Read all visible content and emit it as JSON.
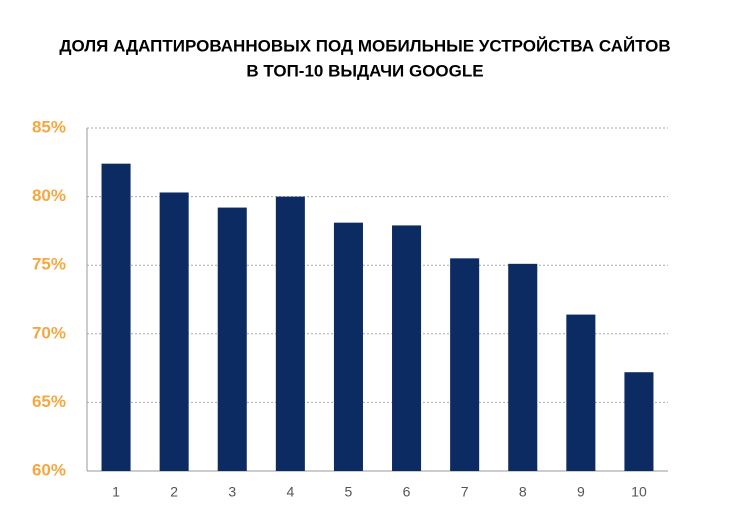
{
  "chart_data": {
    "type": "bar",
    "title": [
      "ДОЛЯ АДАПТИРОВАННОВЫХ ПОД МОБИЛЬНЫЕ УСТРОЙСТВА САЙТОВ",
      "В ТОП-10 ВЫДАЧИ GOOGLE"
    ],
    "categories": [
      "1",
      "2",
      "3",
      "4",
      "5",
      "6",
      "7",
      "8",
      "9",
      "10"
    ],
    "values": [
      82.4,
      80.3,
      79.2,
      80.0,
      78.1,
      77.9,
      75.5,
      75.1,
      71.4,
      67.2
    ],
    "color": "#0d2b63",
    "ylim": [
      60,
      85
    ],
    "yticks": [
      {
        "value": 60,
        "label": "60%"
      },
      {
        "value": 65,
        "label": "65%"
      },
      {
        "value": 70,
        "label": "70%"
      },
      {
        "value": 75,
        "label": "75%"
      },
      {
        "value": 80,
        "label": "80%"
      },
      {
        "value": 85,
        "label": "85%"
      }
    ],
    "grid": true
  }
}
